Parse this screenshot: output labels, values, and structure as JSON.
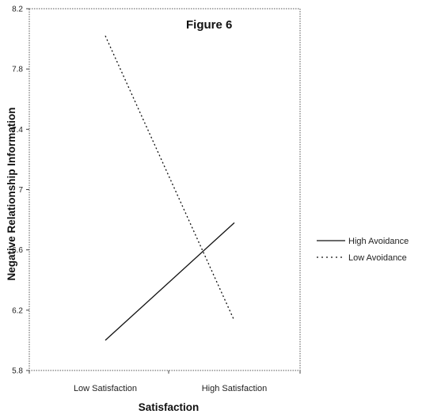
{
  "chart_data": {
    "type": "line",
    "title": "Figure 6",
    "xlabel": "Satisfaction",
    "ylabel": "Negative Relationship Information",
    "categories": [
      "Low Satisfaction",
      "High Satisfaction"
    ],
    "ylim": [
      5.8,
      8.2
    ],
    "yticks": [
      5.8,
      6.2,
      6.6,
      7,
      7.4,
      7.8,
      8.2
    ],
    "ytick_labels": [
      "5.8",
      "6.2",
      "6.6",
      "7",
      "7.4",
      "7.8",
      "8.2"
    ],
    "grid": false,
    "legend_position": "right",
    "series": [
      {
        "name": "High Avoidance",
        "values": [
          6.0,
          6.78
        ],
        "style": "solid",
        "color": "#111111"
      },
      {
        "name": "Low Avoidance",
        "values": [
          8.02,
          6.13
        ],
        "style": "dotted",
        "color": "#111111"
      }
    ]
  }
}
